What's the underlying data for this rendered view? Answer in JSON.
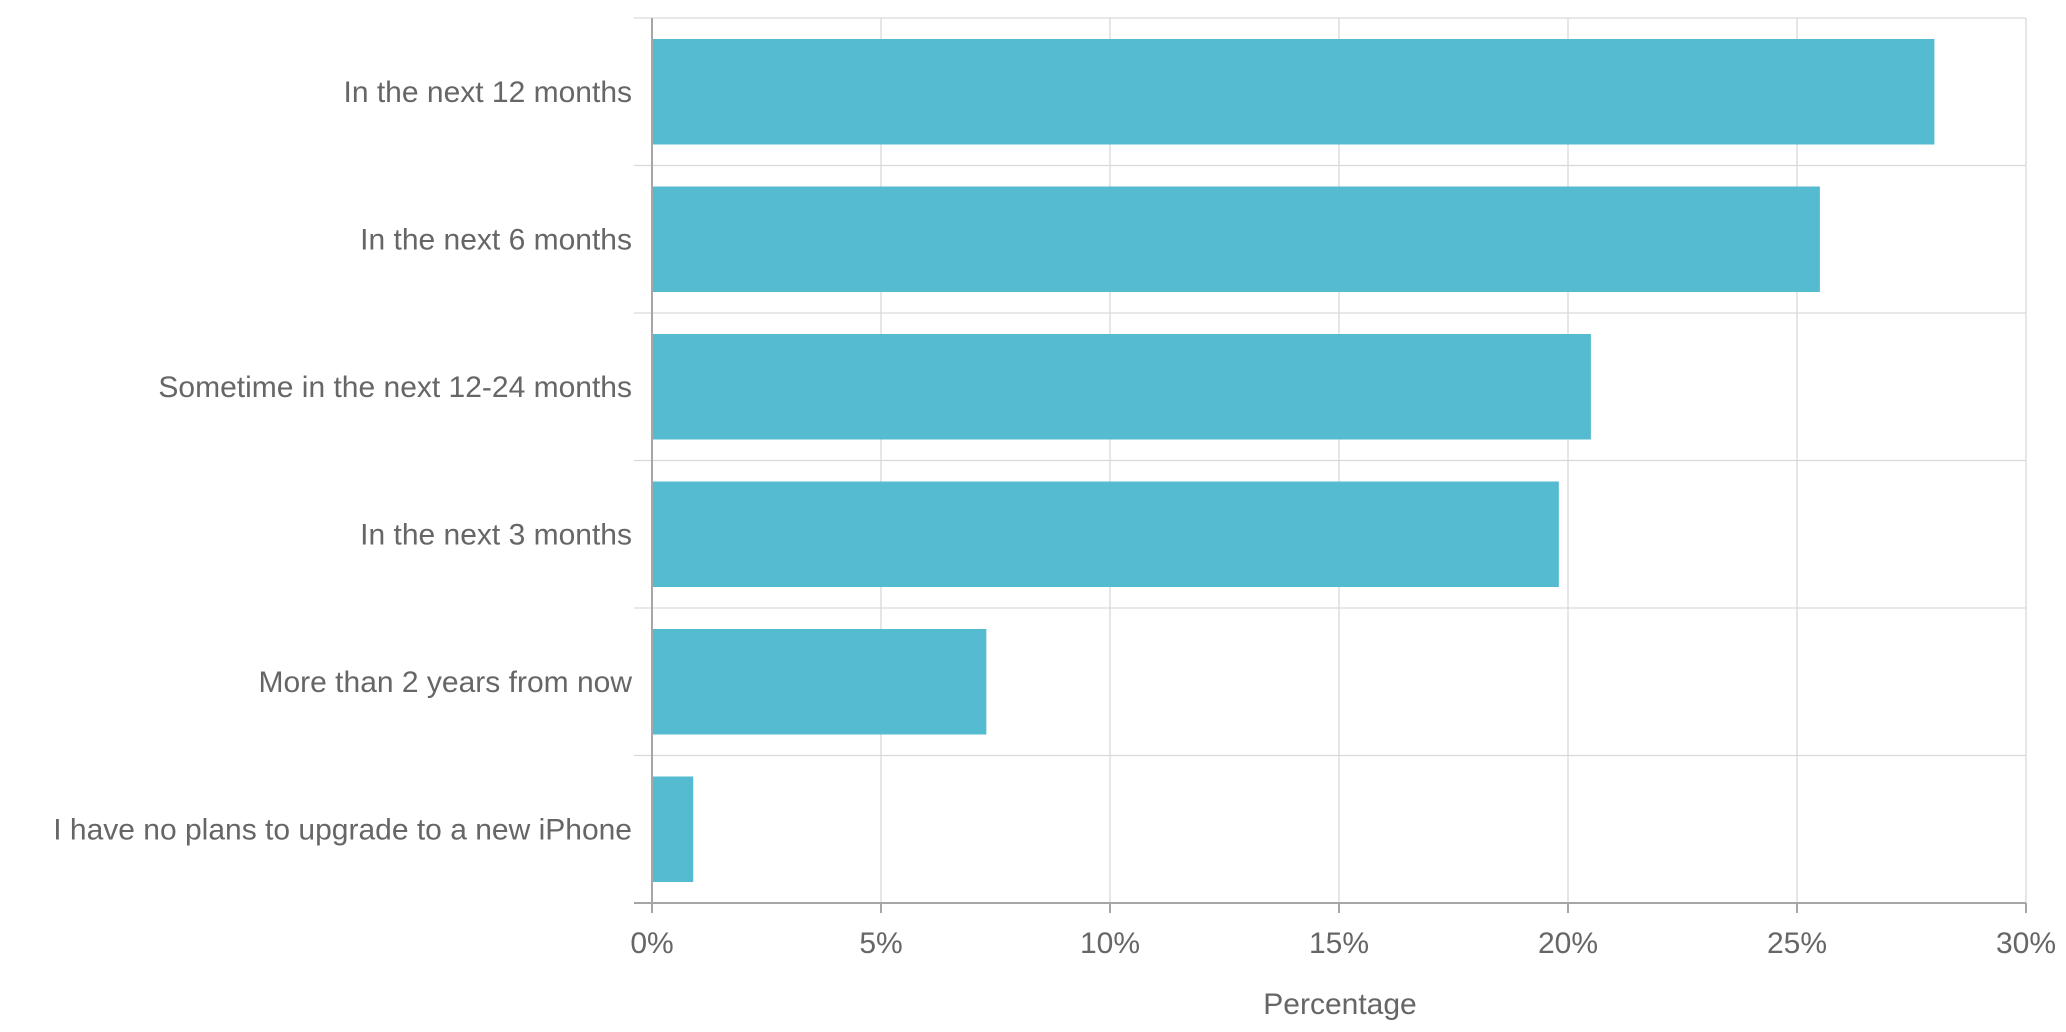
{
  "chart_data": {
    "type": "bar",
    "orientation": "horizontal",
    "categories": [
      "In the next 12 months",
      "In the next 6 months",
      "Sometime in the next 12-24 months",
      "In the next 3 months",
      "More than 2 years from now",
      "I have no plans to upgrade to a new iPhone"
    ],
    "values": [
      28.0,
      25.5,
      20.5,
      19.8,
      7.3,
      0.9
    ],
    "xlabel": "Percentage",
    "ylabel": "",
    "xlim": [
      0,
      30
    ],
    "xticks": [
      0,
      5,
      10,
      15,
      20,
      25,
      30
    ],
    "tick_suffix": "%",
    "grid": true,
    "colors": {
      "bar": "#55bbd0",
      "grid": "#d9d9d9",
      "axis": "#a6a6a6",
      "text": "#666666"
    }
  }
}
